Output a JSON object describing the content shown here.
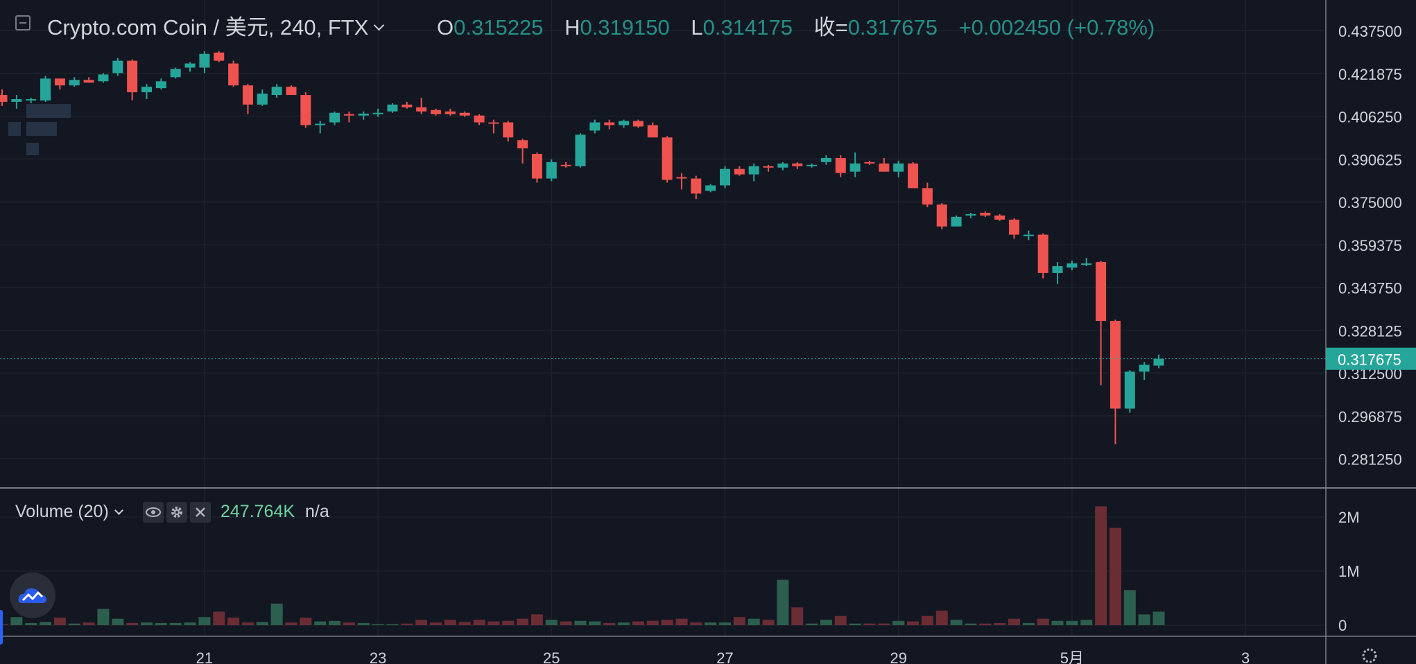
{
  "header": {
    "symbol": "Crypto.com Coin / 美元, 240, FTX",
    "open_key": "O",
    "open": "0.315225",
    "high_key": "H",
    "high": "0.319150",
    "low_key": "L",
    "low": "0.314175",
    "close_key": "收=",
    "close": "0.317675",
    "change": "+0.002450 (+0.78%)"
  },
  "volume_panel": {
    "title": "Volume (20)",
    "value": "247.764K",
    "na": "n/a",
    "icons": [
      "eye-icon",
      "gear-icon",
      "close-icon"
    ]
  },
  "colors": {
    "background": "#131722",
    "up": "#26a69a",
    "down": "#ef5350",
    "grid": "#1e222d",
    "text": "#d1d4dc"
  },
  "chart_data": [
    {
      "type": "candlestick",
      "title": "Crypto.com Coin / 美元, 240, FTX",
      "y_ticks": [
        "0.437500",
        "0.421875",
        "0.406250",
        "0.390625",
        "0.375000",
        "0.359375",
        "0.343750",
        "0.328125",
        "0.312500",
        "0.296875",
        "0.281250"
      ],
      "ylim": [
        0.2766,
        0.4421
      ],
      "x_ticks": [
        "21",
        "23",
        "25",
        "27",
        "29",
        "5月",
        "3"
      ],
      "x_tick_index": [
        14,
        26,
        38,
        50,
        62,
        74,
        86
      ],
      "last_price_label": "0.317675",
      "last_price": 0.317675,
      "grid": true,
      "candles": [
        [
          0.414,
          0.416,
          0.41,
          0.4115
        ],
        [
          0.4115,
          0.414,
          0.409,
          0.4125
        ],
        [
          0.4125,
          0.413,
          0.411,
          0.4125
        ],
        [
          0.412,
          0.421,
          0.4115,
          0.42
        ],
        [
          0.42,
          0.42,
          0.416,
          0.4175
        ],
        [
          0.4175,
          0.4205,
          0.417,
          0.4195
        ],
        [
          0.4195,
          0.4205,
          0.4185,
          0.4185
        ],
        [
          0.419,
          0.422,
          0.4185,
          0.4215
        ],
        [
          0.422,
          0.4275,
          0.421,
          0.4265
        ],
        [
          0.4265,
          0.427,
          0.412,
          0.415
        ],
        [
          0.415,
          0.418,
          0.4125,
          0.417
        ],
        [
          0.4165,
          0.42,
          0.416,
          0.419
        ],
        [
          0.4205,
          0.424,
          0.42,
          0.4235
        ],
        [
          0.424,
          0.426,
          0.4225,
          0.4255
        ],
        [
          0.424,
          0.43,
          0.422,
          0.429
        ],
        [
          0.4295,
          0.43,
          0.426,
          0.4265
        ],
        [
          0.4255,
          0.4265,
          0.417,
          0.4175
        ],
        [
          0.4175,
          0.418,
          0.407,
          0.4105
        ],
        [
          0.4105,
          0.416,
          0.41,
          0.4145
        ],
        [
          0.414,
          0.418,
          0.413,
          0.417
        ],
        [
          0.417,
          0.4175,
          0.414,
          0.414
        ],
        [
          0.414,
          0.415,
          0.402,
          0.403
        ],
        [
          0.403,
          0.4045,
          0.4,
          0.4035
        ],
        [
          0.404,
          0.408,
          0.403,
          0.4075
        ],
        [
          0.407,
          0.408,
          0.404,
          0.4065
        ],
        [
          0.4065,
          0.408,
          0.405,
          0.4072
        ],
        [
          0.4075,
          0.409,
          0.406,
          0.4075
        ],
        [
          0.408,
          0.411,
          0.4075,
          0.4105
        ],
        [
          0.4105,
          0.4115,
          0.409,
          0.4095
        ],
        [
          0.4095,
          0.413,
          0.407,
          0.408
        ],
        [
          0.4085,
          0.409,
          0.4065,
          0.407
        ],
        [
          0.408,
          0.409,
          0.4065,
          0.407
        ],
        [
          0.4075,
          0.408,
          0.406,
          0.4065
        ],
        [
          0.4065,
          0.407,
          0.403,
          0.404
        ],
        [
          0.404,
          0.405,
          0.4,
          0.4035
        ],
        [
          0.404,
          0.4045,
          0.397,
          0.3985
        ],
        [
          0.3975,
          0.398,
          0.389,
          0.3945
        ],
        [
          0.3925,
          0.393,
          0.382,
          0.3835
        ],
        [
          0.3835,
          0.3905,
          0.3825,
          0.3895
        ],
        [
          0.3885,
          0.3895,
          0.3875,
          0.388
        ],
        [
          0.388,
          0.4,
          0.3875,
          0.3995
        ],
        [
          0.401,
          0.405,
          0.4,
          0.404
        ],
        [
          0.404,
          0.405,
          0.4015,
          0.403
        ],
        [
          0.403,
          0.405,
          0.402,
          0.4045
        ],
        [
          0.4045,
          0.405,
          0.402,
          0.4025
        ],
        [
          0.403,
          0.404,
          0.399,
          0.3985
        ],
        [
          0.3985,
          0.399,
          0.382,
          0.383
        ],
        [
          0.384,
          0.3855,
          0.3795,
          0.3835
        ],
        [
          0.3835,
          0.3845,
          0.376,
          0.378
        ],
        [
          0.379,
          0.3815,
          0.3785,
          0.381
        ],
        [
          0.381,
          0.388,
          0.38,
          0.387
        ],
        [
          0.387,
          0.388,
          0.3845,
          0.385
        ],
        [
          0.385,
          0.389,
          0.3825,
          0.388
        ],
        [
          0.388,
          0.3885,
          0.386,
          0.3875
        ],
        [
          0.3875,
          0.3895,
          0.3865,
          0.389
        ],
        [
          0.389,
          0.3895,
          0.387,
          0.388
        ],
        [
          0.388,
          0.389,
          0.3875,
          0.3885
        ],
        [
          0.3895,
          0.392,
          0.3885,
          0.391
        ],
        [
          0.391,
          0.392,
          0.384,
          0.3855
        ],
        [
          0.386,
          0.393,
          0.384,
          0.389
        ],
        [
          0.3895,
          0.39,
          0.3885,
          0.389
        ],
        [
          0.389,
          0.391,
          0.386,
          0.386
        ],
        [
          0.386,
          0.39,
          0.384,
          0.389
        ],
        [
          0.389,
          0.3895,
          0.38,
          0.38
        ],
        [
          0.38,
          0.382,
          0.373,
          0.374
        ],
        [
          0.374,
          0.3745,
          0.365,
          0.366
        ],
        [
          0.366,
          0.37,
          0.366,
          0.3695
        ],
        [
          0.37,
          0.371,
          0.369,
          0.3705
        ],
        [
          0.371,
          0.3715,
          0.3695,
          0.37
        ],
        [
          0.37,
          0.3705,
          0.368,
          0.3685
        ],
        [
          0.3685,
          0.369,
          0.3615,
          0.363
        ],
        [
          0.3625,
          0.3645,
          0.361,
          0.363
        ],
        [
          0.363,
          0.3635,
          0.347,
          0.349
        ],
        [
          0.349,
          0.353,
          0.345,
          0.3515
        ],
        [
          0.351,
          0.3535,
          0.35,
          0.3525
        ],
        [
          0.3525,
          0.3545,
          0.3515,
          0.3525
        ],
        [
          0.353,
          0.3535,
          0.308,
          0.3315
        ],
        [
          0.3315,
          0.332,
          0.2865,
          0.2995
        ],
        [
          0.2995,
          0.3135,
          0.298,
          0.313
        ],
        [
          0.313,
          0.3165,
          0.31,
          0.3155
        ],
        [
          0.3152,
          0.3192,
          0.3142,
          0.3177
        ]
      ]
    },
    {
      "type": "bar",
      "title": "Volume (20)",
      "y_ticks": [
        "2M",
        "1M",
        "0"
      ],
      "ylim": [
        0,
        2.3
      ],
      "unit": "M",
      "volumes": [
        0.02,
        0.15,
        0.04,
        0.06,
        0.14,
        0.03,
        0.05,
        0.3,
        0.12,
        0.04,
        0.05,
        0.04,
        0.04,
        0.05,
        0.15,
        0.25,
        0.14,
        0.05,
        0.06,
        0.4,
        0.05,
        0.14,
        0.07,
        0.08,
        0.05,
        0.04,
        0.02,
        0.02,
        0.03,
        0.1,
        0.05,
        0.1,
        0.06,
        0.1,
        0.07,
        0.08,
        0.12,
        0.2,
        0.1,
        0.07,
        0.08,
        0.07,
        0.04,
        0.05,
        0.07,
        0.08,
        0.1,
        0.12,
        0.05,
        0.05,
        0.05,
        0.15,
        0.12,
        0.1,
        0.84,
        0.33,
        0.03,
        0.1,
        0.17,
        0.03,
        0.03,
        0.03,
        0.08,
        0.07,
        0.17,
        0.27,
        0.1,
        0.03,
        0.03,
        0.04,
        0.12,
        0.04,
        0.12,
        0.08,
        0.08,
        0.1,
        2.2,
        1.8,
        0.65,
        0.2,
        0.25
      ]
    }
  ]
}
